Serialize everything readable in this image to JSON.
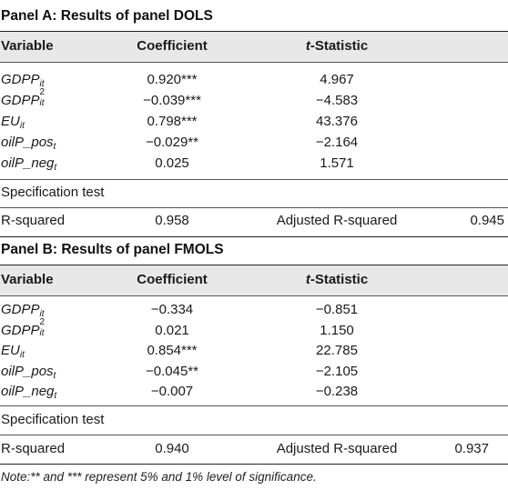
{
  "panelA": {
    "title": "Panel A: Results of panel DOLS",
    "headers": {
      "variable": "Variable",
      "coefficient": "Coefficient",
      "t_prefix": "t",
      "t_suffix": "-Statistic"
    },
    "rows": [
      {
        "base": "GDPP",
        "sub": "it",
        "sup": "",
        "coef": "0.920***",
        "tstat": "4.967"
      },
      {
        "base": "GDPP",
        "sub": "it",
        "sup": "2",
        "coef": "−0.039***",
        "tstat": "−4.583"
      },
      {
        "base": "EU",
        "sub": "it",
        "sup": "",
        "coef": "0.798***",
        "tstat": "43.376"
      },
      {
        "base": "oilP_pos",
        "sub": "t",
        "sup": "",
        "coef": "−0.029**",
        "tstat": "−2.164"
      },
      {
        "base": "oilP_neg",
        "sub": "t",
        "sup": "",
        "coef": "0.025",
        "tstat": "1.571"
      }
    ],
    "spec_label": "Specification test",
    "r2_label": "R-squared",
    "r2_value": "0.958",
    "adj_label": "Adjusted R-squared",
    "adj_value": "0.945"
  },
  "panelB": {
    "title": "Panel B: Results of panel FMOLS",
    "headers": {
      "variable": "Variable",
      "coefficient": "Coefficient",
      "t_prefix": "t",
      "t_suffix": "-Statistic"
    },
    "rows": [
      {
        "base": "GDPP",
        "sub": "it",
        "sup": "",
        "coef": "−0.334",
        "tstat": "−0.851"
      },
      {
        "base": "GDPP",
        "sub": "it",
        "sup": "2",
        "coef": "0.021",
        "tstat": "1.150"
      },
      {
        "base": "EU",
        "sub": "it",
        "sup": "",
        "coef": "0.854***",
        "tstat": "22.785"
      },
      {
        "base": "oilP_pos",
        "sub": "t",
        "sup": "",
        "coef": "−0.045**",
        "tstat": "−2.105"
      },
      {
        "base": "oilP_neg",
        "sub": "t",
        "sup": "",
        "coef": "−0.007",
        "tstat": "−0.238"
      }
    ],
    "spec_label": "Specification test",
    "r2_label": "R-squared",
    "r2_value": "0.940",
    "adj_label": "Adjusted R-squared",
    "adj_value": "0.937"
  },
  "note": "Note:** and *** represent 5% and 1% level of significance."
}
